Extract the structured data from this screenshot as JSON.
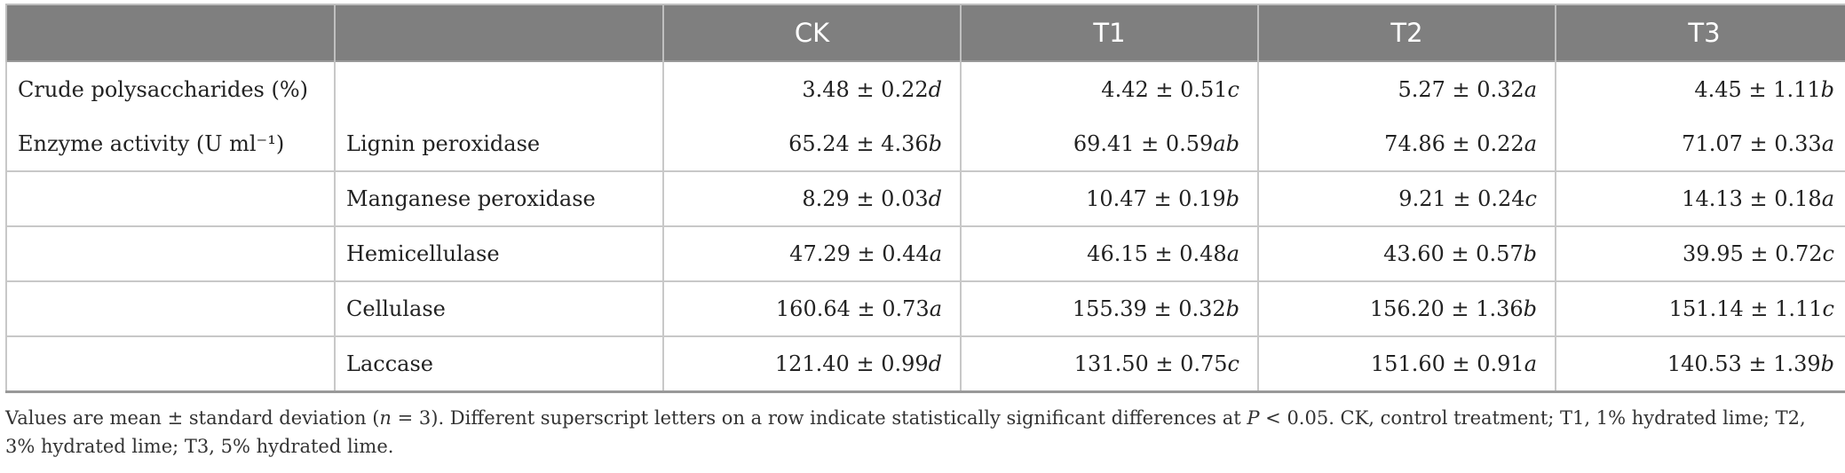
{
  "table": {
    "headers": [
      "",
      "",
      "CK",
      "T1",
      "T2",
      "T3"
    ],
    "rows": [
      {
        "label": "Crude polysaccharides (%)",
        "sub": "",
        "values": [
          [
            "3.48 ± 0.22",
            "d"
          ],
          [
            "4.42 ± 0.51",
            "c"
          ],
          [
            "5.27 ± 0.32",
            "a"
          ],
          [
            "4.45 ± 1.11",
            "b"
          ]
        ]
      },
      {
        "label": "Enzyme activity (U ml⁻¹)",
        "sub": "Lignin peroxidase",
        "values": [
          [
            "65.24 ± 4.36",
            "b"
          ],
          [
            "69.41 ± 0.59",
            "ab"
          ],
          [
            "74.86 ± 0.22",
            "a"
          ],
          [
            "71.07 ± 0.33",
            "a"
          ]
        ]
      },
      {
        "label": "",
        "sub": "Manganese peroxidase",
        "values": [
          [
            "8.29 ± 0.03",
            "d"
          ],
          [
            "10.47 ± 0.19",
            "b"
          ],
          [
            "9.21 ± 0.24",
            "c"
          ],
          [
            "14.13 ± 0.18",
            "a"
          ]
        ]
      },
      {
        "label": "",
        "sub": "Hemicellulase",
        "values": [
          [
            "47.29 ± 0.44",
            "a"
          ],
          [
            "46.15 ± 0.48",
            "a"
          ],
          [
            "43.60 ± 0.57",
            "b"
          ],
          [
            "39.95 ± 0.72",
            "c"
          ]
        ]
      },
      {
        "label": "",
        "sub": "Cellulase",
        "values": [
          [
            "160.64 ± 0.73",
            "a"
          ],
          [
            "155.39 ± 0.32",
            "b"
          ],
          [
            "156.20 ± 1.36",
            "b"
          ],
          [
            "151.14 ± 1.11",
            "c"
          ]
        ]
      },
      {
        "label": "",
        "sub": "Laccase",
        "values": [
          [
            "121.40 ± 0.99",
            "d"
          ],
          [
            "131.50 ± 0.75",
            "c"
          ],
          [
            "151.60 ± 0.91",
            "a"
          ],
          [
            "140.53 ± 1.39",
            "b"
          ]
        ]
      }
    ]
  },
  "footnote": {
    "line1": "Values are mean ± standard deviation (n = 3). Different superscript letters on a row indicate statistically significant differences at P < 0.05. CK, control treatment; T1, 1% hydrated lime; T2,",
    "line2": "3% hydrated lime; T3, 5% hydrated lime."
  }
}
